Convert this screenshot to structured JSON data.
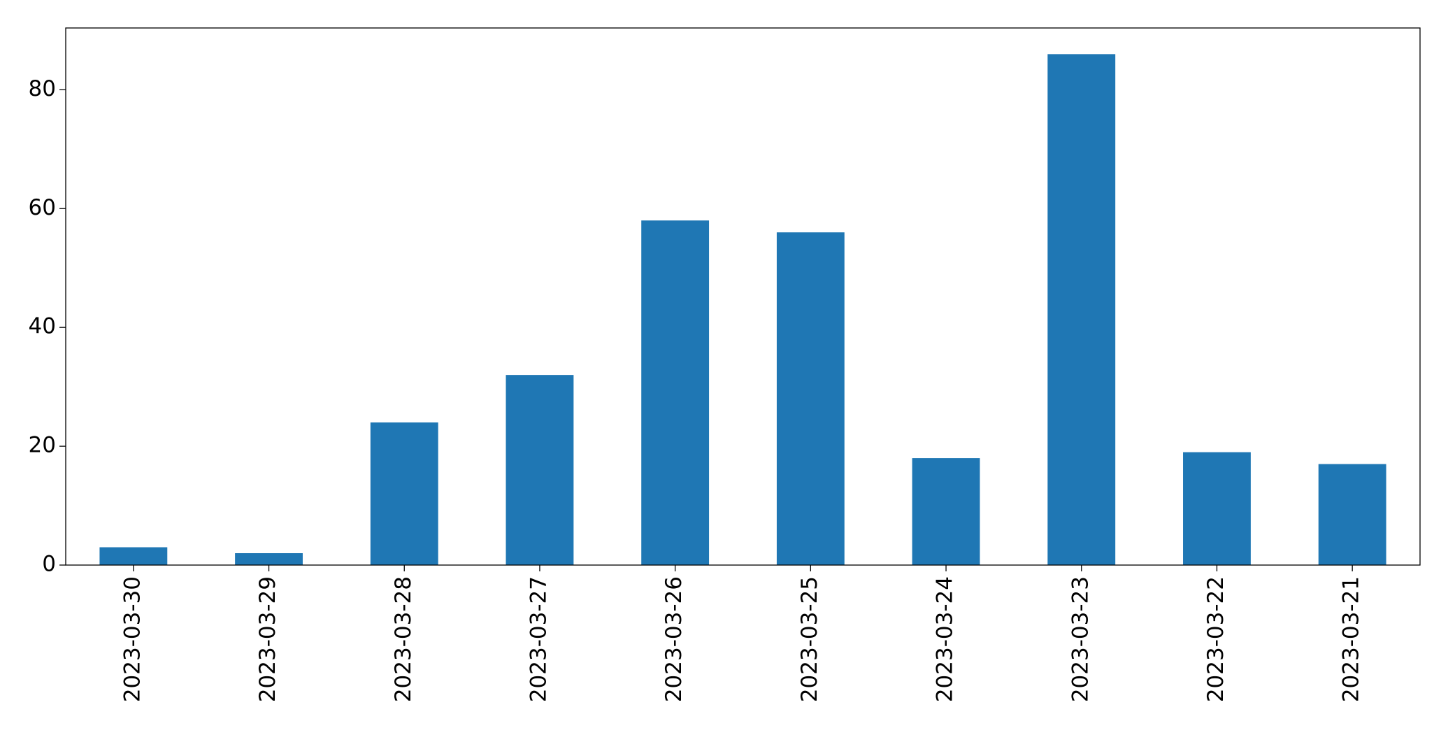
{
  "chart_data": {
    "type": "bar",
    "categories": [
      "2023-03-30",
      "2023-03-29",
      "2023-03-28",
      "2023-03-27",
      "2023-03-26",
      "2023-03-25",
      "2023-03-24",
      "2023-03-23",
      "2023-03-22",
      "2023-03-21"
    ],
    "values": [
      3,
      2,
      24,
      32,
      58,
      56,
      18,
      86,
      19,
      17
    ],
    "color": "#1f77b4",
    "ylim": [
      0,
      90.4
    ],
    "yticks": [
      0,
      20,
      40,
      60,
      80
    ],
    "grid": false
  }
}
